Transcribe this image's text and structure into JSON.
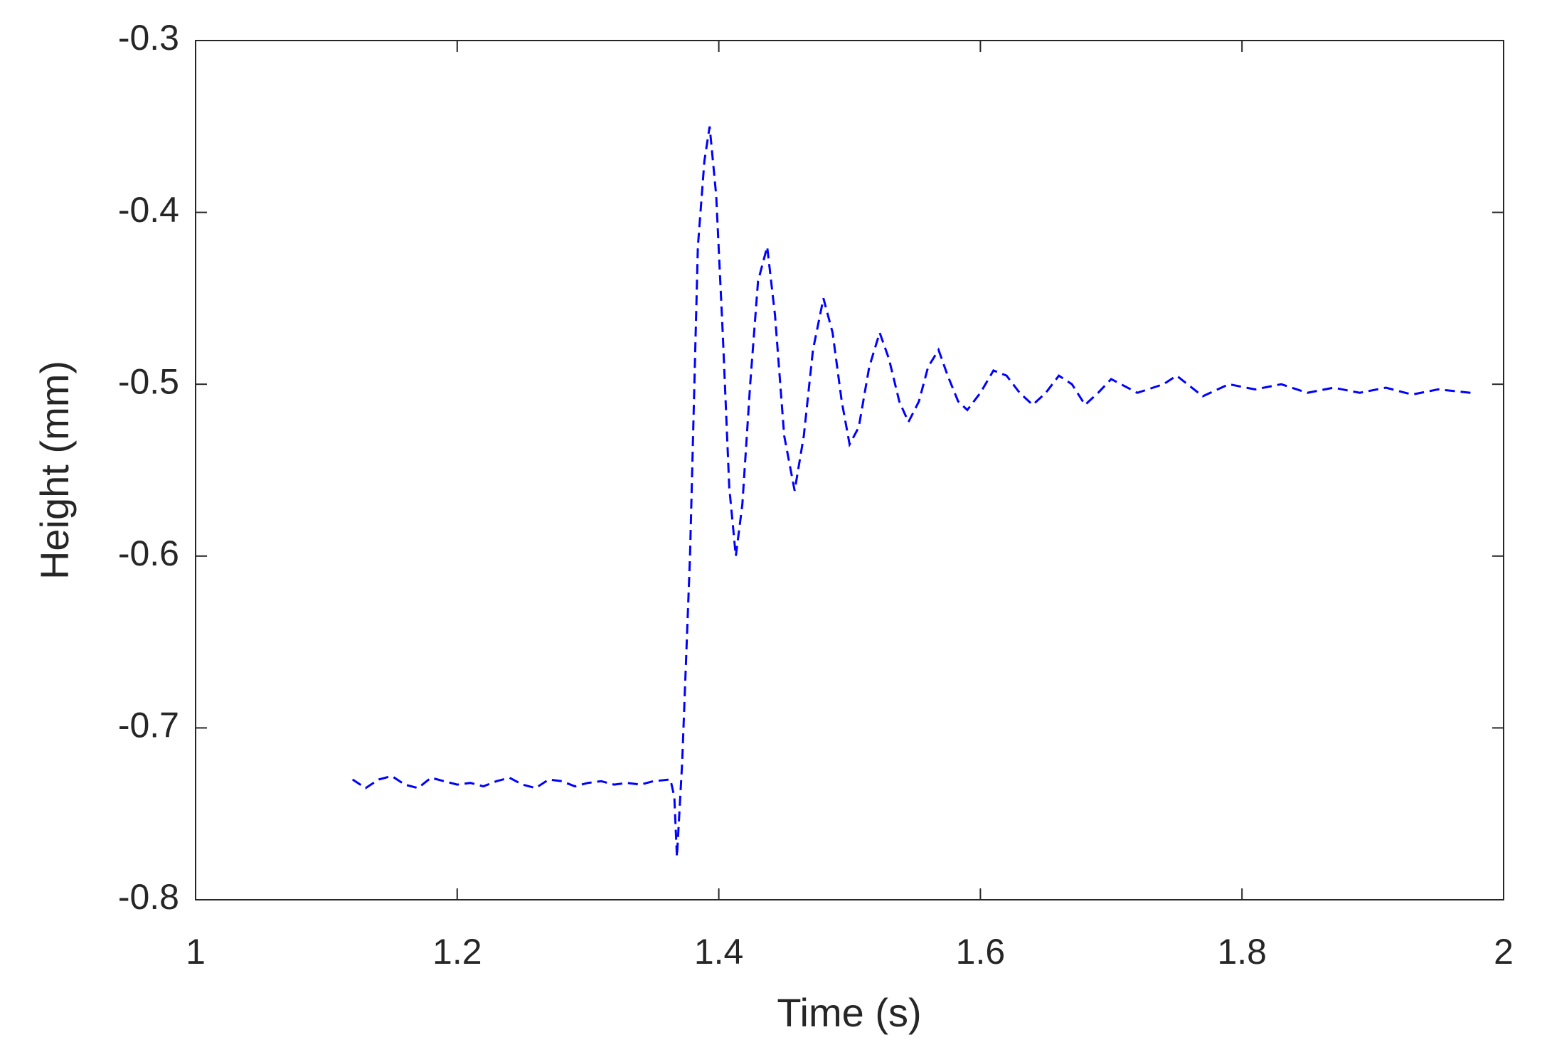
{
  "chart_data": {
    "type": "line",
    "x_label": "Time (s)",
    "y_label": "Height (mm)",
    "xlim": [
      1,
      2
    ],
    "ylim": [
      -0.8,
      -0.3
    ],
    "xticks": [
      1,
      1.2,
      1.4,
      1.6,
      1.8,
      2
    ],
    "yticks": [
      -0.8,
      -0.7,
      -0.6,
      -0.5,
      -0.4,
      -0.3
    ],
    "grid": false,
    "line_style": "dashed",
    "series": [
      {
        "color": "#0000ff",
        "x": [
          1.12,
          1.13,
          1.14,
          1.15,
          1.16,
          1.17,
          1.18,
          1.19,
          1.2,
          1.21,
          1.22,
          1.23,
          1.24,
          1.25,
          1.26,
          1.27,
          1.28,
          1.29,
          1.3,
          1.31,
          1.32,
          1.33,
          1.34,
          1.35,
          1.363,
          1.366,
          1.368,
          1.372,
          1.378,
          1.384,
          1.389,
          1.393,
          1.398,
          1.403,
          1.408,
          1.413,
          1.418,
          1.424,
          1.43,
          1.437,
          1.443,
          1.45,
          1.458,
          1.465,
          1.472,
          1.48,
          1.487,
          1.494,
          1.5,
          1.507,
          1.515,
          1.523,
          1.53,
          1.538,
          1.545,
          1.553,
          1.56,
          1.568,
          1.575,
          1.583,
          1.59,
          1.6,
          1.61,
          1.62,
          1.63,
          1.64,
          1.65,
          1.66,
          1.67,
          1.68,
          1.69,
          1.7,
          1.72,
          1.74,
          1.75,
          1.77,
          1.79,
          1.81,
          1.83,
          1.85,
          1.87,
          1.89,
          1.91,
          1.93,
          1.95,
          1.975
        ],
        "values": [
          -0.73,
          -0.735,
          -0.73,
          -0.728,
          -0.733,
          -0.735,
          -0.729,
          -0.731,
          -0.733,
          -0.732,
          -0.734,
          -0.731,
          -0.729,
          -0.733,
          -0.735,
          -0.73,
          -0.731,
          -0.734,
          -0.732,
          -0.731,
          -0.733,
          -0.732,
          -0.733,
          -0.731,
          -0.73,
          -0.74,
          -0.775,
          -0.72,
          -0.6,
          -0.42,
          -0.37,
          -0.35,
          -0.39,
          -0.47,
          -0.56,
          -0.6,
          -0.57,
          -0.5,
          -0.44,
          -0.42,
          -0.46,
          -0.53,
          -0.562,
          -0.53,
          -0.48,
          -0.45,
          -0.47,
          -0.51,
          -0.535,
          -0.525,
          -0.49,
          -0.47,
          -0.485,
          -0.51,
          -0.522,
          -0.51,
          -0.49,
          -0.48,
          -0.495,
          -0.51,
          -0.515,
          -0.505,
          -0.492,
          -0.495,
          -0.505,
          -0.512,
          -0.505,
          -0.495,
          -0.5,
          -0.512,
          -0.505,
          -0.497,
          -0.505,
          -0.5,
          -0.495,
          -0.507,
          -0.5,
          -0.503,
          -0.5,
          -0.505,
          -0.502,
          -0.505,
          -0.502,
          -0.506,
          -0.503,
          -0.505
        ]
      }
    ]
  }
}
